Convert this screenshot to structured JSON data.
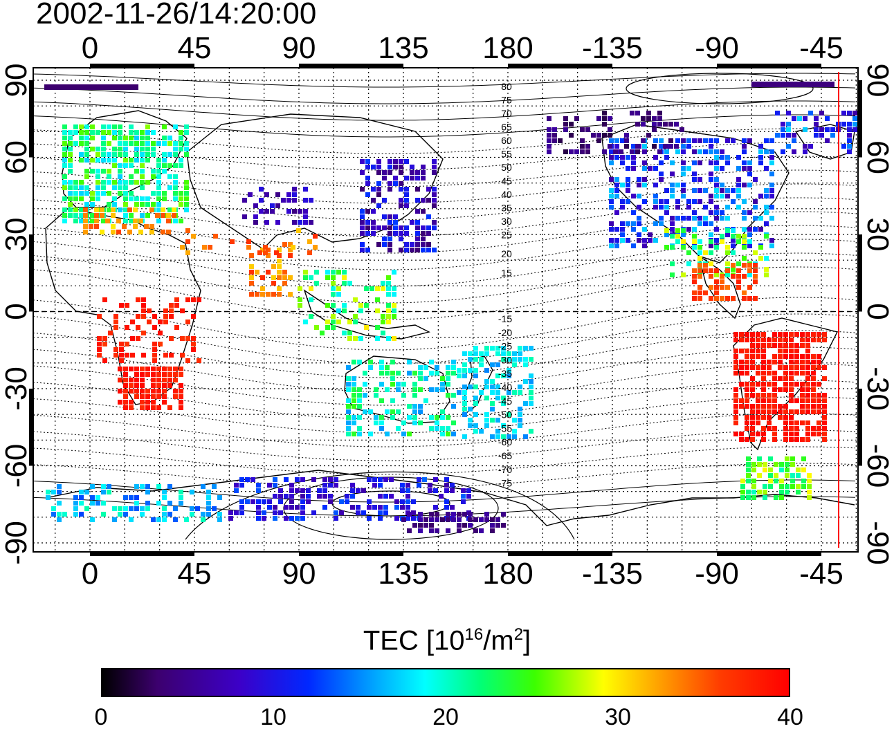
{
  "timestamp": "2002-11-26/14:20:00",
  "map": {
    "top_ticks": [
      "0",
      "45",
      "90",
      "135",
      "180",
      "-135",
      "-90",
      "-45"
    ],
    "bottom_ticks": [
      "0",
      "45",
      "90",
      "135",
      "180",
      "-135",
      "-90",
      "-45"
    ],
    "left_ticks": [
      "90",
      "60",
      "30",
      "0",
      "-30",
      "-60",
      "-90"
    ],
    "right_ticks": [
      "90",
      "60",
      "30",
      "0",
      "-30",
      "-60",
      "-90"
    ],
    "contour_labels_north": [
      "80",
      "75",
      "70",
      "65",
      "60",
      "55",
      "50",
      "45",
      "40",
      "35",
      "30",
      "25",
      "20",
      "15"
    ],
    "contour_labels_south": [
      "-15",
      "-20",
      "-25",
      "-30",
      "-35",
      "-40",
      "-45",
      "-50",
      "-55",
      "-60",
      "-65",
      "-70",
      "-75"
    ],
    "subsolar_marker_color": "#ff0000"
  },
  "colorbar": {
    "title_main": "TEC  [10",
    "title_sup1": "16",
    "title_mid": "/m",
    "title_sup2": "2",
    "title_end": "]",
    "ticks": [
      "0",
      "10",
      "20",
      "30",
      "40"
    ],
    "range": [
      0,
      40
    ]
  }
}
